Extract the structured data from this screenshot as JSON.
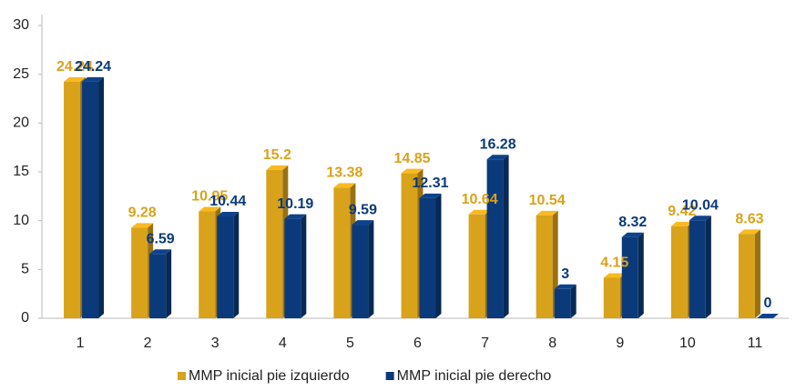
{
  "chart_data": {
    "type": "bar3d",
    "categories": [
      "1",
      "2",
      "3",
      "4",
      "5",
      "6",
      "7",
      "8",
      "9",
      "10",
      "11"
    ],
    "series": [
      {
        "name": "MMP inicial pie izquierdo",
        "color": "#d9a21b",
        "values": [
          24.24,
          9.28,
          10.95,
          15.2,
          13.38,
          14.85,
          10.64,
          10.54,
          4.15,
          9.42,
          8.63
        ]
      },
      {
        "name": "MMP inicial pie derecho",
        "color": "#0b3a7a",
        "values": [
          24.24,
          6.59,
          10.44,
          10.19,
          9.59,
          12.31,
          16.28,
          3,
          8.32,
          10.04,
          0
        ]
      }
    ],
    "ylim": [
      0,
      30
    ],
    "yticks": [
      0,
      5,
      10,
      15,
      20,
      25,
      30
    ],
    "grid": false,
    "legend": "bottom"
  }
}
